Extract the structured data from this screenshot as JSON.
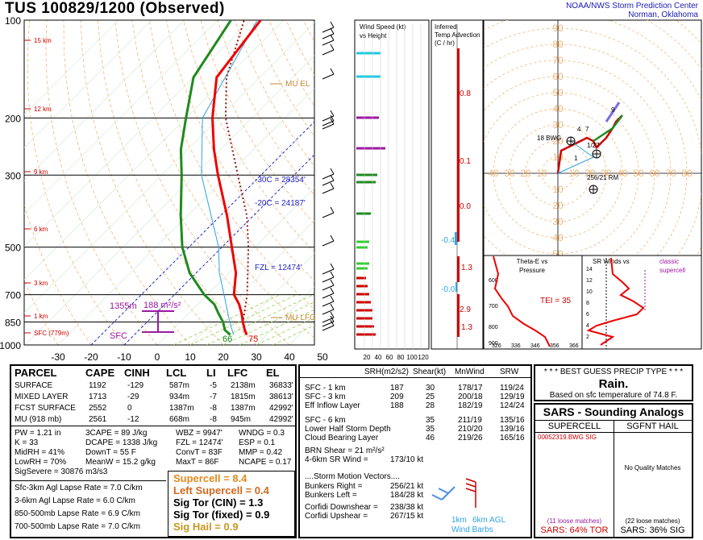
{
  "header": {
    "title": "TUS   100829/1200  (Observed)",
    "credit_line1": "NOAA/NWS Storm Prediction Center",
    "credit_line2": "Norman, Oklahoma"
  },
  "skewt": {
    "pressure_labels": [
      "100",
      "200",
      "300",
      "500",
      "700",
      "850",
      "1000"
    ],
    "pressure_values": [
      100,
      200,
      300,
      500,
      700,
      850,
      1000
    ],
    "temp_labels": [
      "-30",
      "-20",
      "-10",
      "0",
      "10",
      "20",
      "30",
      "40",
      "50"
    ],
    "height_labels": [
      "15 km",
      "12 km",
      "9 km",
      "6 km",
      "3 km",
      "1 km",
      "SFC (779m)"
    ],
    "annotations": {
      "mu_el": "MU EL",
      "mu_lfc": "MU LFC",
      "minus30": "-30C = 28354'",
      "minus20": "-20C = 24187'",
      "fzl": "FZL = 12474'",
      "sfc": "SFC",
      "depth": "1355m",
      "srh": "188 m²/s²",
      "sfc_td": "66",
      "sfc_t": "75"
    }
  },
  "wind_panel": {
    "title_line1": "Wind Speed (kt)",
    "title_line2": "vs Height",
    "axis": [
      "20",
      "40",
      "60",
      "80",
      "100",
      "120"
    ]
  },
  "advection_panel": {
    "title_line1": "Inferred",
    "title_line2": "Temp Advection",
    "title_line3": "(C / hr)",
    "values": [
      "0.8",
      "0.1",
      "0.0",
      "-0.4",
      "1.3",
      "-0.0",
      "2.9",
      "1.3"
    ]
  },
  "hodograph": {
    "ring_labels": [
      "90",
      "80",
      "70",
      "60",
      "50",
      "40",
      "30",
      "20",
      "10",
      "10",
      "20",
      "30",
      "40",
      "50"
    ],
    "x_labels": [
      "40",
      "30",
      "20",
      "10",
      "10",
      "20",
      "30",
      "40",
      "50",
      "60",
      "70",
      "80"
    ],
    "labels": {
      "bwg": "18 BWG",
      "point9": "9",
      "p4": "4",
      "p7": "7",
      "p1": "1",
      "p27": "1/27",
      "rm": "256/21 RM",
      "lm": "LM"
    }
  },
  "theta_panel": {
    "title_line1": "Theta-E vs",
    "title_line2": "Pressure",
    "tei": "TEI = 35",
    "p_labels": [
      "600",
      "700",
      "800",
      "900"
    ],
    "x_labels": [
      "326",
      "336",
      "346",
      "356",
      "366"
    ]
  },
  "sr_panel": {
    "title": "SR Winds vs",
    "title2": "Height",
    "classic": "classic",
    "supercell": "supercell",
    "h_labels": [
      "14",
      "12",
      "10",
      "8",
      "6",
      "4",
      "2"
    ]
  },
  "parcel_table": {
    "headers": [
      "PARCEL",
      "CAPE",
      "CINH",
      "LCL",
      "LI",
      "LFC",
      "EL"
    ],
    "rows": [
      [
        "SURFACE",
        "1192",
        "-129",
        "587m",
        "-5",
        "2138m",
        "36833'"
      ],
      [
        "MIXED LAYER",
        "1713",
        "-29",
        "934m",
        "-7",
        "1815m",
        "38613'"
      ],
      [
        "FCST SURFACE",
        "2552",
        "0",
        "1387m",
        "-8",
        "1387m",
        "42992'"
      ],
      [
        "MU   (918 mb)",
        "2561",
        "-12",
        "668m",
        "-8",
        "945m",
        "42992'"
      ]
    ]
  },
  "thermo": {
    "col1": [
      "PW = 1.21 in",
      "K = 33",
      "MidRH = 41%",
      "LowRH = 70%",
      "SigSevere = 30876 m3/s3"
    ],
    "col2": [
      "3CAPE = 89 J/kg",
      "DCAPE = 1338 J/kg",
      "DownT = 55 F",
      "MeanW = 15.2 g/kg"
    ],
    "col3": [
      "WBZ = 9947'",
      "FZL = 12474'",
      "ConvT = 83F",
      "MaxT = 86F"
    ],
    "col4": [
      "WNDG = 0.3",
      "ESP = 0.1",
      "MMP = 0.42",
      "NCAPE = 0.17"
    ]
  },
  "lapse_rates": [
    "Sfc-3km Agl Lapse Rate = 7.0 C/km",
    "3-6km Agl Lapse Rate = 6.0 C/km",
    "850-500mb Lapse Rate = 6.9 C/km",
    "700-500mb Lapse Rate = 7.0 C/km"
  ],
  "indices": [
    {
      "text": "Supercell = 8.4",
      "color": "#e08a1e"
    },
    {
      "text": "Left Supercell = 0.4",
      "color": "#d2691e"
    },
    {
      "text": "Sig Tor (CIN) = 1.3",
      "color": "#000000"
    },
    {
      "text": "Sig Tor (fixed) = 0.9",
      "color": "#000000"
    },
    {
      "text": "Sig Hail = 0.9",
      "color": "#c8961e"
    }
  ],
  "kinematics": {
    "headers": [
      "SRH(m2/s2)",
      "Shear(kt)",
      "MnWind",
      "SRW"
    ],
    "rows": [
      [
        "SFC - 1 km",
        "187",
        "30",
        "178/17",
        "119/24"
      ],
      [
        "SFC - 3 km",
        "209",
        "25",
        "200/18",
        "129/19"
      ],
      [
        "Eff Inflow Layer",
        "188",
        "28",
        "182/19",
        "124/24"
      ],
      [
        "SFC - 6 km",
        "",
        "35",
        "211/19",
        "135/16"
      ],
      [
        "Lower Half Storm Depth",
        "",
        "35",
        "210/20",
        "139/16"
      ],
      [
        "Cloud Bearing Layer",
        "",
        "46",
        "219/26",
        "165/16"
      ]
    ],
    "brn": "BRN Shear =  21 m²/s²",
    "sr46": "4-6km SR Wind =",
    "sr46_val": "173/10 kt",
    "smv_title": "....Storm Motion Vectors....",
    "smv": [
      [
        "Bunkers Right =",
        "256/21 kt"
      ],
      [
        "Bunkers Left =",
        "184/28 kt"
      ],
      [
        "Corfidi Downshear =",
        "238/38 kt"
      ],
      [
        "Corfidi Upshear =",
        "267/15 kt"
      ]
    ],
    "barb_label1": "1km",
    "barb_label2": "6km AGL",
    "barb_label3": "Wind Barbs"
  },
  "precip": {
    "title": "* * * BEST GUESS PRECIP TYPE * * *",
    "type": "Rain.",
    "basis": "Based on sfc temperature of 74.8 F."
  },
  "sars": {
    "title": "SARS - Sounding Analogs",
    "col1": "SUPERCELL",
    "col2": "SGFNT HAIL",
    "match": "00052319.BWG  SIG",
    "no_quality": "No Quality Matches",
    "loose1": "(11 loose matches)",
    "loose2": "(22 loose matches)",
    "tor": "SARS:  64% TOR",
    "sig": "SARS:  36% SIG"
  },
  "chart_data": {
    "type": "line",
    "title": "TUS   100829/1200  (Observed)",
    "xlabel": "",
    "ylabel": "",
    "ylim": [
      1000,
      100
    ],
    "xlim": [
      -30,
      50
    ],
    "series": [
      {
        "name": "temperature",
        "pressure": [
          930,
          900,
          850,
          800,
          750,
          700,
          600,
          500,
          400,
          300,
          250,
          200,
          150,
          100
        ],
        "values": [
          24,
          22,
          19,
          16,
          12.5,
          8,
          2,
          -7,
          -18,
          -33,
          -42,
          -52,
          -63,
          -67
        ]
      },
      {
        "name": "dewpoint",
        "pressure": [
          930,
          900,
          850,
          800,
          750,
          700,
          600,
          500,
          400,
          300,
          250,
          200,
          150,
          100
        ],
        "values": [
          19,
          16,
          13,
          9,
          5,
          -1,
          -12,
          -22,
          -32,
          -44,
          -52,
          -60,
          -70,
          -76
        ]
      },
      {
        "name": "parcel",
        "pressure": [
          930,
          850,
          700,
          500,
          400,
          300,
          200,
          150,
          100
        ],
        "values": [
          24,
          19,
          12,
          -2,
          -12,
          -27,
          -48,
          -60,
          -72
        ]
      },
      {
        "name": "wetbulb",
        "pressure": [
          930,
          850,
          700,
          600,
          500,
          300,
          200,
          100
        ],
        "values": [
          20,
          15,
          5,
          -3,
          -11,
          -38,
          -55,
          -68
        ]
      }
    ]
  }
}
